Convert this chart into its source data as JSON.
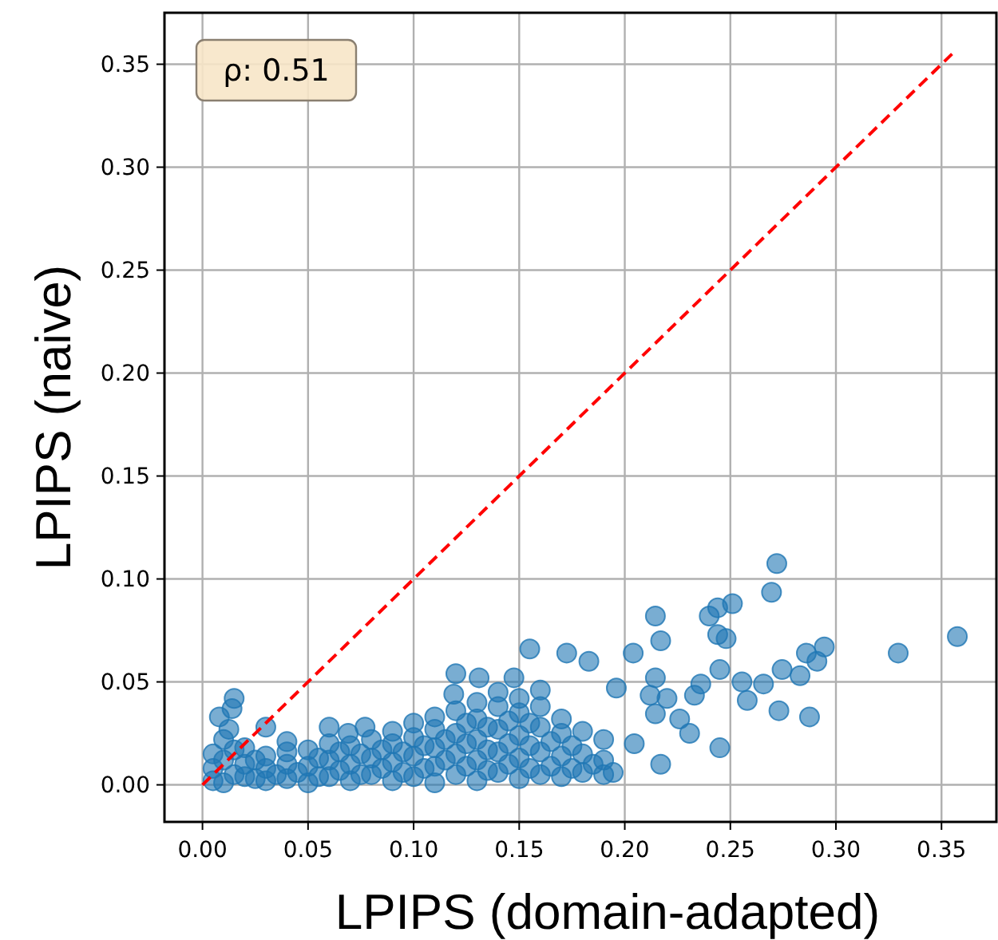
{
  "chart_data": {
    "type": "scatter",
    "xlabel": "LPIPS (domain-adapted)",
    "ylabel": "LPIPS (naive)",
    "xlim": [
      -0.018,
      0.376
    ],
    "ylim": [
      -0.018,
      0.375
    ],
    "xticks": [
      {
        "value": 0,
        "label": "0.00"
      },
      {
        "value": 0.05,
        "label": "0.05"
      },
      {
        "value": 0.1,
        "label": "0.10"
      },
      {
        "value": 0.15,
        "label": "0.15"
      },
      {
        "value": 0.2,
        "label": "0.20"
      },
      {
        "value": 0.25,
        "label": "0.25"
      },
      {
        "value": 0.3,
        "label": "0.30"
      },
      {
        "value": 0.35,
        "label": "0.35"
      }
    ],
    "yticks": [
      {
        "value": 0,
        "label": "0.00"
      },
      {
        "value": 0.05,
        "label": "0.05"
      },
      {
        "value": 0.1,
        "label": "0.10"
      },
      {
        "value": 0.15,
        "label": "0.15"
      },
      {
        "value": 0.2,
        "label": "0.20"
      },
      {
        "value": 0.25,
        "label": "0.25"
      },
      {
        "value": 0.3,
        "label": "0.30"
      },
      {
        "value": 0.35,
        "label": "0.35"
      }
    ],
    "grid": true,
    "marker": "circle",
    "annotations": [
      "ρ: 0.51"
    ],
    "series": [
      {
        "color": "#1f77b4",
        "x": [
          0.005,
          0.005,
          0.005,
          0.01,
          0.01,
          0.01,
          0.015,
          0.015,
          0.02,
          0.02,
          0.02,
          0.025,
          0.025,
          0.03,
          0.03,
          0.03,
          0.035,
          0.04,
          0.04,
          0.04,
          0.045,
          0.05,
          0.05,
          0.05,
          0.055,
          0.055,
          0.06,
          0.06,
          0.06,
          0.065,
          0.065,
          0.07,
          0.07,
          0.07,
          0.075,
          0.075,
          0.08,
          0.08,
          0.08,
          0.085,
          0.085,
          0.09,
          0.09,
          0.09,
          0.09,
          0.095,
          0.095,
          0.1,
          0.1,
          0.1,
          0.1,
          0.105,
          0.105,
          0.11,
          0.11,
          0.11,
          0.11,
          0.11,
          0.115,
          0.115,
          0.12,
          0.12,
          0.12,
          0.12,
          0.125,
          0.125,
          0.125,
          0.13,
          0.13,
          0.13,
          0.13,
          0.13,
          0.135,
          0.135,
          0.135,
          0.14,
          0.14,
          0.14,
          0.14,
          0.14,
          0.145,
          0.145,
          0.145,
          0.15,
          0.15,
          0.15,
          0.15,
          0.15,
          0.155,
          0.155,
          0.155,
          0.16,
          0.16,
          0.16,
          0.16,
          0.165,
          0.165,
          0.17,
          0.17,
          0.17,
          0.17,
          0.175,
          0.175,
          0.18,
          0.18,
          0.18,
          0.185,
          0.19,
          0.19,
          0.19,
          0.015,
          0.008,
          0.014,
          0.0125,
          0.03,
          0.04,
          0.06,
          0.069,
          0.077,
          0.12,
          0.119,
          0.131,
          0.1475,
          0.155,
          0.1725,
          0.16,
          0.272,
          0.2695,
          0.2145,
          0.217,
          0.183,
          0.204,
          0.24,
          0.244,
          0.251,
          0.244,
          0.248,
          0.286,
          0.291,
          0.2945,
          0.3295,
          0.3575,
          0.273,
          0.2875,
          0.2745,
          0.283,
          0.245,
          0.245,
          0.2555,
          0.2657,
          0.258,
          0.233,
          0.226,
          0.2145,
          0.217,
          0.1945,
          0.196,
          0.2145,
          0.236,
          0.2045,
          0.2307,
          0.212,
          0.22
        ],
        "values": [
          0.002,
          0.008,
          0.015,
          0.001,
          0.012,
          0.022,
          0.005,
          0.017,
          0.004,
          0.01,
          0.018,
          0.003,
          0.012,
          0.002,
          0.008,
          0.014,
          0.005,
          0.003,
          0.01,
          0.016,
          0.006,
          0.001,
          0.009,
          0.017,
          0.004,
          0.013,
          0.004,
          0.012,
          0.02,
          0.007,
          0.016,
          0.002,
          0.01,
          0.019,
          0.005,
          0.015,
          0.005,
          0.013,
          0.022,
          0.008,
          0.017,
          0.002,
          0.011,
          0.02,
          0.026,
          0.006,
          0.016,
          0.004,
          0.014,
          0.023,
          0.03,
          0.008,
          0.019,
          0.001,
          0.009,
          0.018,
          0.027,
          0.033,
          0.012,
          0.022,
          0.005,
          0.015,
          0.025,
          0.036,
          0.009,
          0.02,
          0.03,
          0.002,
          0.012,
          0.022,
          0.032,
          0.04,
          0.007,
          0.017,
          0.028,
          0.006,
          0.016,
          0.027,
          0.038,
          0.045,
          0.01,
          0.02,
          0.031,
          0.003,
          0.013,
          0.024,
          0.035,
          0.042,
          0.008,
          0.019,
          0.03,
          0.005,
          0.016,
          0.028,
          0.038,
          0.009,
          0.021,
          0.004,
          0.014,
          0.025,
          0.032,
          0.008,
          0.019,
          0.006,
          0.015,
          0.026,
          0.01,
          0.005,
          0.012,
          0.022,
          0.042,
          0.033,
          0.037,
          0.027,
          0.028,
          0.021,
          0.028,
          0.025,
          0.028,
          0.054,
          0.044,
          0.052,
          0.052,
          0.066,
          0.064,
          0.046,
          0.1075,
          0.0935,
          0.082,
          0.07,
          0.06,
          0.064,
          0.082,
          0.086,
          0.088,
          0.073,
          0.071,
          0.064,
          0.06,
          0.067,
          0.064,
          0.072,
          0.036,
          0.033,
          0.056,
          0.053,
          0.018,
          0.056,
          0.05,
          0.049,
          0.041,
          0.0435,
          0.032,
          0.0345,
          0.01,
          0.006,
          0.047,
          0.052,
          0.049,
          0.02,
          0.025,
          0.0435,
          0.042
        ]
      },
      {
        "type": "line",
        "color": "#ff0000",
        "line_style": "dashed",
        "marker": "none",
        "x": [
          0,
          0.355
        ],
        "values": [
          0,
          0.355
        ]
      }
    ]
  }
}
